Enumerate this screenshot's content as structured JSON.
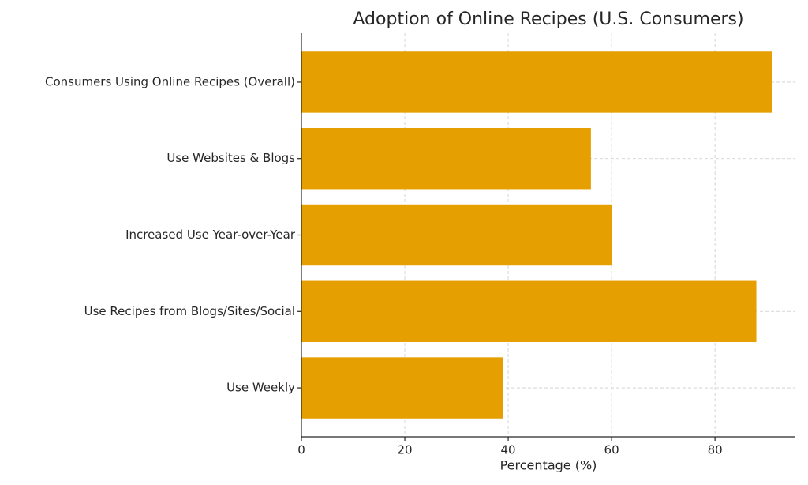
{
  "chart_data": {
    "type": "bar",
    "orientation": "horizontal",
    "title": "Adoption of Online Recipes (U.S. Consumers)",
    "x_label": "Percentage (%)",
    "categories": [
      "Consumers Using Online Recipes (Overall)",
      "Use Websites & Blogs",
      "Increased Use Year-over-Year",
      "Use Recipes from Blogs/Sites/Social",
      "Use Weekly"
    ],
    "values": [
      91,
      56,
      60,
      88,
      39
    ],
    "color": "#e59f00",
    "xlim": [
      0,
      95.55
    ],
    "xticks": [
      0,
      20,
      40,
      60,
      80
    ],
    "grid": true
  }
}
